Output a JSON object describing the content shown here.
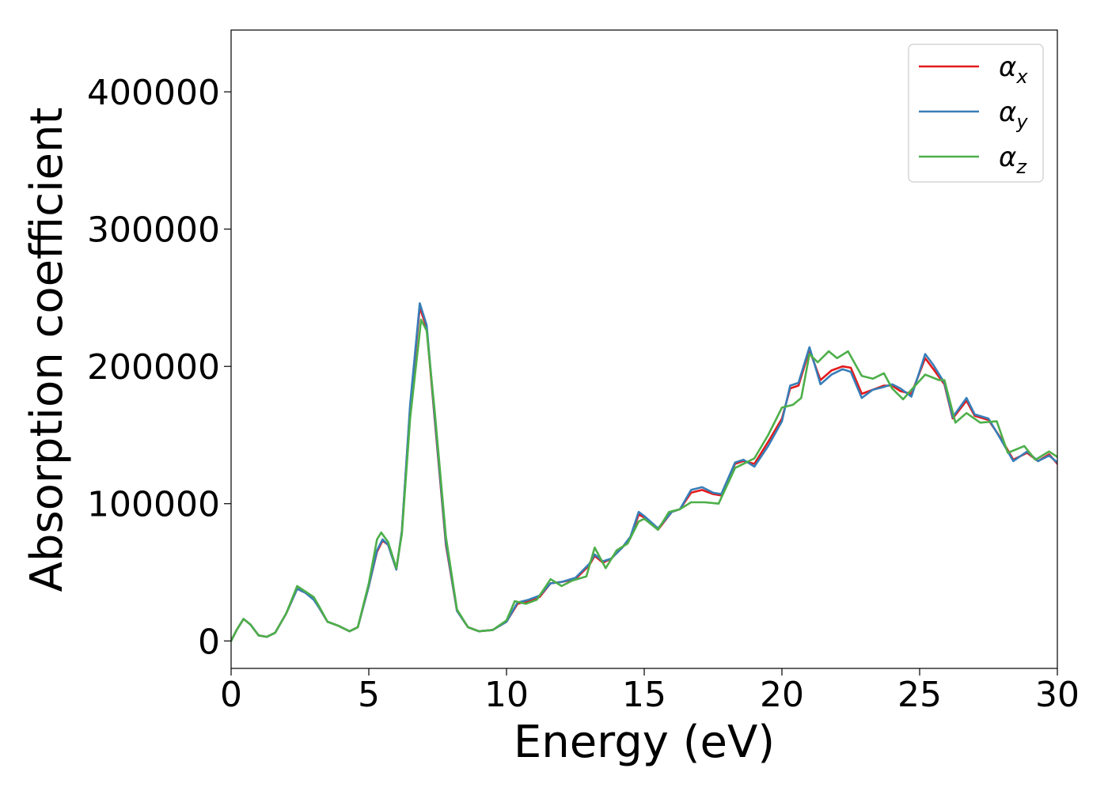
{
  "chart_data": {
    "type": "line",
    "title": "",
    "xlabel": "Energy (eV)",
    "ylabel": "Absorption coefficient",
    "xlim": [
      0,
      30
    ],
    "ylim": [
      -20000,
      445000
    ],
    "xticks": [
      0,
      5,
      10,
      15,
      20,
      25,
      30
    ],
    "xtick_labels": [
      "0",
      "5",
      "10",
      "15",
      "20",
      "25",
      "30"
    ],
    "yticks": [
      0,
      100000,
      200000,
      300000,
      400000
    ],
    "ytick_labels": [
      "0",
      "100000",
      "200000",
      "300000",
      "400000"
    ],
    "grid": false,
    "legend_position": "top-right",
    "legend": [
      {
        "base": "α",
        "sub": "x",
        "color": "#e41a1c"
      },
      {
        "base": "α",
        "sub": "y",
        "color": "#377eb8"
      },
      {
        "base": "α",
        "sub": "z",
        "color": "#4daf4a"
      }
    ],
    "series": [
      {
        "name": "αx",
        "color": "#e41a1c",
        "points": [
          [
            0,
            0
          ],
          [
            0.2,
            8000
          ],
          [
            0.45,
            16000
          ],
          [
            0.7,
            12000
          ],
          [
            1.0,
            4000
          ],
          [
            1.3,
            3000
          ],
          [
            1.6,
            6000
          ],
          [
            2.0,
            20000
          ],
          [
            2.4,
            38000
          ],
          [
            2.7,
            35000
          ],
          [
            3.0,
            31000
          ],
          [
            3.2,
            24000
          ],
          [
            3.5,
            14000
          ],
          [
            3.9,
            11000
          ],
          [
            4.3,
            7000
          ],
          [
            4.6,
            10000
          ],
          [
            5.0,
            40000
          ],
          [
            5.3,
            65000
          ],
          [
            5.5,
            73000
          ],
          [
            5.7,
            70000
          ],
          [
            6.0,
            52000
          ],
          [
            6.2,
            80000
          ],
          [
            6.5,
            170000
          ],
          [
            6.85,
            243000
          ],
          [
            7.1,
            228000
          ],
          [
            7.4,
            160000
          ],
          [
            7.8,
            70000
          ],
          [
            8.2,
            22000
          ],
          [
            8.6,
            10000
          ],
          [
            9.0,
            7000
          ],
          [
            9.5,
            8000
          ],
          [
            10.0,
            14000
          ],
          [
            10.4,
            27000
          ],
          [
            10.8,
            29000
          ],
          [
            11.2,
            32000
          ],
          [
            11.6,
            42000
          ],
          [
            12.0,
            43000
          ],
          [
            12.5,
            45000
          ],
          [
            13.0,
            55000
          ],
          [
            13.2,
            62000
          ],
          [
            13.5,
            57000
          ],
          [
            13.8,
            60000
          ],
          [
            14.2,
            68000
          ],
          [
            14.5,
            75000
          ],
          [
            14.8,
            92000
          ],
          [
            15.0,
            90000
          ],
          [
            15.5,
            81000
          ],
          [
            16.0,
            94000
          ],
          [
            16.3,
            96000
          ],
          [
            16.7,
            108000
          ],
          [
            17.1,
            110000
          ],
          [
            17.5,
            107000
          ],
          [
            17.8,
            106000
          ],
          [
            18.3,
            129000
          ],
          [
            18.6,
            131000
          ],
          [
            19.0,
            129000
          ],
          [
            19.5,
            145000
          ],
          [
            20.0,
            162000
          ],
          [
            20.3,
            184000
          ],
          [
            20.6,
            186000
          ],
          [
            21.0,
            212000
          ],
          [
            21.4,
            190000
          ],
          [
            21.8,
            197000
          ],
          [
            22.2,
            200000
          ],
          [
            22.5,
            199000
          ],
          [
            22.9,
            180000
          ],
          [
            23.3,
            183000
          ],
          [
            23.7,
            186000
          ],
          [
            24.0,
            186000
          ],
          [
            24.3,
            182000
          ],
          [
            24.7,
            180000
          ],
          [
            25.2,
            206000
          ],
          [
            25.5,
            198000
          ],
          [
            25.9,
            187000
          ],
          [
            26.2,
            162000
          ],
          [
            26.7,
            175000
          ],
          [
            27.0,
            164000
          ],
          [
            27.5,
            161000
          ],
          [
            28.0,
            146000
          ],
          [
            28.4,
            132000
          ],
          [
            28.9,
            137000
          ],
          [
            29.3,
            131000
          ],
          [
            29.7,
            136000
          ],
          [
            30.0,
            129000
          ]
        ]
      },
      {
        "name": "αy",
        "color": "#377eb8",
        "points": [
          [
            0,
            0
          ],
          [
            0.2,
            8000
          ],
          [
            0.45,
            16000
          ],
          [
            0.7,
            12000
          ],
          [
            1.0,
            4000
          ],
          [
            1.3,
            3000
          ],
          [
            1.6,
            6000
          ],
          [
            2.0,
            20000
          ],
          [
            2.4,
            38000
          ],
          [
            2.7,
            35000
          ],
          [
            3.0,
            30000
          ],
          [
            3.2,
            24000
          ],
          [
            3.5,
            14000
          ],
          [
            3.9,
            11000
          ],
          [
            4.3,
            7000
          ],
          [
            4.6,
            10000
          ],
          [
            5.0,
            40000
          ],
          [
            5.3,
            66000
          ],
          [
            5.5,
            74000
          ],
          [
            5.7,
            70000
          ],
          [
            6.0,
            52000
          ],
          [
            6.2,
            80000
          ],
          [
            6.5,
            172000
          ],
          [
            6.85,
            246000
          ],
          [
            7.1,
            230000
          ],
          [
            7.4,
            162000
          ],
          [
            7.8,
            72000
          ],
          [
            8.2,
            22000
          ],
          [
            8.6,
            10000
          ],
          [
            9.0,
            7000
          ],
          [
            9.5,
            8000
          ],
          [
            10.0,
            14000
          ],
          [
            10.4,
            28000
          ],
          [
            10.8,
            30000
          ],
          [
            11.2,
            33000
          ],
          [
            11.6,
            42000
          ],
          [
            12.0,
            43000
          ],
          [
            12.5,
            46000
          ],
          [
            13.0,
            56000
          ],
          [
            13.2,
            63000
          ],
          [
            13.5,
            58000
          ],
          [
            13.8,
            60000
          ],
          [
            14.2,
            68000
          ],
          [
            14.5,
            76000
          ],
          [
            14.8,
            94000
          ],
          [
            15.0,
            91000
          ],
          [
            15.5,
            82000
          ],
          [
            16.0,
            94000
          ],
          [
            16.3,
            96000
          ],
          [
            16.7,
            110000
          ],
          [
            17.1,
            112000
          ],
          [
            17.5,
            108000
          ],
          [
            17.8,
            107000
          ],
          [
            18.3,
            130000
          ],
          [
            18.6,
            132000
          ],
          [
            19.0,
            127000
          ],
          [
            19.5,
            142000
          ],
          [
            20.0,
            160000
          ],
          [
            20.3,
            186000
          ],
          [
            20.6,
            188000
          ],
          [
            21.0,
            214000
          ],
          [
            21.4,
            187000
          ],
          [
            21.8,
            194000
          ],
          [
            22.2,
            198000
          ],
          [
            22.5,
            196000
          ],
          [
            22.9,
            177000
          ],
          [
            23.3,
            183000
          ],
          [
            23.7,
            185000
          ],
          [
            24.0,
            187000
          ],
          [
            24.3,
            184000
          ],
          [
            24.7,
            178000
          ],
          [
            25.2,
            209000
          ],
          [
            25.5,
            201000
          ],
          [
            25.9,
            188000
          ],
          [
            26.2,
            163000
          ],
          [
            26.7,
            177000
          ],
          [
            27.0,
            165000
          ],
          [
            27.5,
            162000
          ],
          [
            28.0,
            145000
          ],
          [
            28.4,
            131000
          ],
          [
            28.9,
            138000
          ],
          [
            29.3,
            131000
          ],
          [
            29.7,
            135000
          ],
          [
            30.0,
            130000
          ]
        ]
      },
      {
        "name": "αz",
        "color": "#4daf4a",
        "points": [
          [
            0,
            0
          ],
          [
            0.2,
            8000
          ],
          [
            0.45,
            16000
          ],
          [
            0.7,
            12000
          ],
          [
            1.0,
            4000
          ],
          [
            1.3,
            3000
          ],
          [
            1.6,
            6000
          ],
          [
            2.0,
            20000
          ],
          [
            2.4,
            40000
          ],
          [
            2.7,
            36000
          ],
          [
            3.0,
            32000
          ],
          [
            3.2,
            25000
          ],
          [
            3.5,
            14000
          ],
          [
            3.9,
            11000
          ],
          [
            4.3,
            7000
          ],
          [
            4.6,
            10000
          ],
          [
            5.0,
            42000
          ],
          [
            5.3,
            74000
          ],
          [
            5.45,
            79000
          ],
          [
            5.7,
            72000
          ],
          [
            6.0,
            53000
          ],
          [
            6.2,
            78000
          ],
          [
            6.5,
            162000
          ],
          [
            6.9,
            234000
          ],
          [
            7.1,
            226000
          ],
          [
            7.4,
            166000
          ],
          [
            7.8,
            76000
          ],
          [
            8.2,
            23000
          ],
          [
            8.6,
            10000
          ],
          [
            9.0,
            7000
          ],
          [
            9.5,
            8000
          ],
          [
            10.0,
            15000
          ],
          [
            10.3,
            29000
          ],
          [
            10.7,
            27000
          ],
          [
            11.1,
            30000
          ],
          [
            11.6,
            45000
          ],
          [
            12.0,
            40000
          ],
          [
            12.4,
            44000
          ],
          [
            12.9,
            47000
          ],
          [
            13.2,
            68000
          ],
          [
            13.6,
            53000
          ],
          [
            14.0,
            66000
          ],
          [
            14.4,
            71000
          ],
          [
            14.8,
            87000
          ],
          [
            15.0,
            89000
          ],
          [
            15.5,
            81000
          ],
          [
            15.9,
            94000
          ],
          [
            16.3,
            96000
          ],
          [
            16.7,
            101000
          ],
          [
            17.2,
            101000
          ],
          [
            17.7,
            100000
          ],
          [
            18.3,
            126000
          ],
          [
            18.6,
            129000
          ],
          [
            19.0,
            133000
          ],
          [
            19.5,
            150000
          ],
          [
            20.0,
            170000
          ],
          [
            20.4,
            172000
          ],
          [
            20.7,
            177000
          ],
          [
            21.0,
            209000
          ],
          [
            21.3,
            203000
          ],
          [
            21.7,
            211000
          ],
          [
            22.0,
            206000
          ],
          [
            22.4,
            211000
          ],
          [
            22.9,
            193000
          ],
          [
            23.3,
            191000
          ],
          [
            23.7,
            195000
          ],
          [
            24.0,
            184000
          ],
          [
            24.4,
            176000
          ],
          [
            24.7,
            183000
          ],
          [
            25.2,
            194000
          ],
          [
            25.7,
            190000
          ],
          [
            25.9,
            190000
          ],
          [
            26.3,
            159000
          ],
          [
            26.7,
            166000
          ],
          [
            27.2,
            159000
          ],
          [
            27.8,
            160000
          ],
          [
            28.2,
            137000
          ],
          [
            28.8,
            142000
          ],
          [
            29.2,
            132000
          ],
          [
            29.7,
            138000
          ],
          [
            30.0,
            134000
          ]
        ]
      }
    ]
  }
}
